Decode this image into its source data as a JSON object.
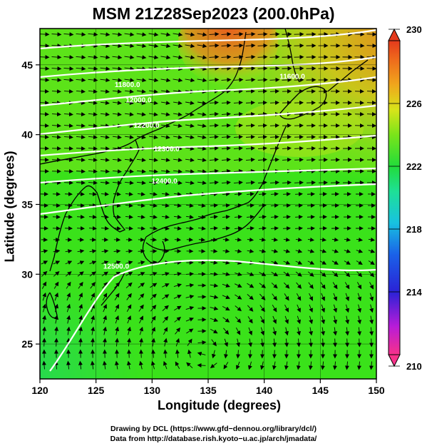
{
  "title": "MSM 21Z28Sep2023 (200.0hPa)",
  "x_axis": {
    "label": "Longitude (degrees)",
    "ticks": [
      {
        "value": 120,
        "label": "120"
      },
      {
        "value": 125,
        "label": "125"
      },
      {
        "value": 130,
        "label": "130"
      },
      {
        "value": 135,
        "label": "135"
      },
      {
        "value": 140,
        "label": "140"
      },
      {
        "value": 145,
        "label": "145"
      },
      {
        "value": 150,
        "label": "150"
      }
    ],
    "range": [
      120,
      150
    ]
  },
  "y_axis": {
    "label": "Latitude (degrees)",
    "ticks": [
      {
        "value": 25,
        "label": "25"
      },
      {
        "value": 30,
        "label": "30"
      },
      {
        "value": 35,
        "label": "35"
      },
      {
        "value": 40,
        "label": "40"
      },
      {
        "value": 45,
        "label": "45"
      }
    ],
    "range": [
      22.5,
      47.6
    ]
  },
  "colorbar": {
    "min": 210,
    "max": 230,
    "labels": [
      {
        "value": 230,
        "label": "230"
      },
      {
        "value": 226,
        "label": "226"
      },
      {
        "value": 222,
        "label": "222"
      },
      {
        "value": 218,
        "label": "218"
      },
      {
        "value": 214,
        "label": "214"
      },
      {
        "value": 210,
        "label": "210"
      }
    ]
  },
  "contour_labels": [
    {
      "text": "11600.0",
      "lon": 142.5,
      "lat": 44.0
    },
    {
      "text": "11800.0",
      "lon": 127.8,
      "lat": 43.4
    },
    {
      "text": "12000.0",
      "lon": 128.8,
      "lat": 42.3
    },
    {
      "text": "12200.0",
      "lon": 129.5,
      "lat": 40.5
    },
    {
      "text": "12300.0",
      "lon": 131.3,
      "lat": 38.8
    },
    {
      "text": "12400.0",
      "lon": 131.1,
      "lat": 36.5
    },
    {
      "text": "12500.0",
      "lon": 126.8,
      "lat": 30.4
    }
  ],
  "colors": {
    "field_main": "#33e41a",
    "field_warm": "#c8e41a",
    "field_hot": "#e8501c",
    "arrows": "#000000",
    "contours": "#ffffff"
  },
  "footer": {
    "line1": "Drawing by DCL (https://www.gfd−dennou.org/library/dcl/)",
    "line2": "Data from http://database.rish.kyoto−u.ac.jp/arch/jmadata/"
  }
}
